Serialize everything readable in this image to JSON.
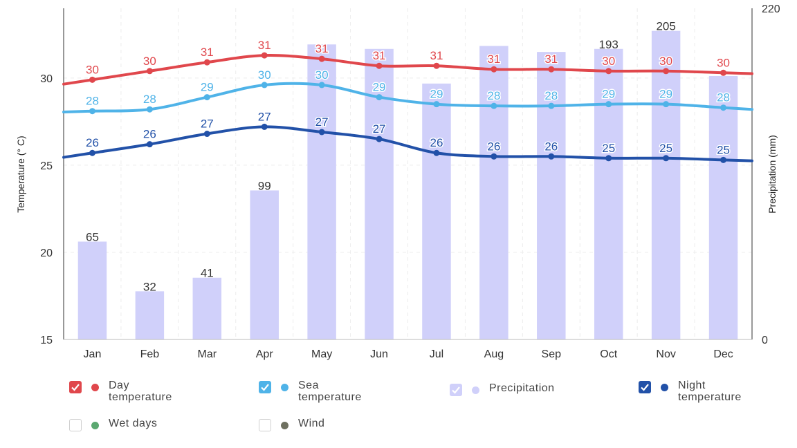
{
  "chart_data": {
    "type": "line",
    "categories": [
      "Jan",
      "Feb",
      "Mar",
      "Apr",
      "May",
      "Jun",
      "Jul",
      "Aug",
      "Sep",
      "Oct",
      "Nov",
      "Dec"
    ],
    "ylabel": "Temperature (° C)",
    "y2label": "Precipitation (mm)",
    "ylim": [
      15,
      34
    ],
    "y_ticks": [
      "15",
      "20",
      "25",
      "30"
    ],
    "y2lim": [
      0,
      220
    ],
    "y2_ticks": [
      "0",
      "220"
    ],
    "series": [
      {
        "name": "Day temperature",
        "type": "line",
        "color": "#e0474c",
        "values": [
          29.9,
          30.4,
          30.9,
          31.3,
          31.1,
          30.7,
          30.7,
          30.5,
          30.5,
          30.4,
          30.4,
          30.3
        ],
        "labels": [
          "30",
          "30",
          "31",
          "31",
          "31",
          "31",
          "31",
          "31",
          "31",
          "30",
          "30",
          "30"
        ]
      },
      {
        "name": "Sea temperature",
        "type": "line",
        "color": "#4fb3e8",
        "values": [
          28.1,
          28.2,
          28.9,
          29.6,
          29.6,
          28.9,
          28.5,
          28.4,
          28.4,
          28.5,
          28.5,
          28.3
        ],
        "labels": [
          "28",
          "28",
          "29",
          "30",
          "30",
          "29",
          "29",
          "28",
          "28",
          "29",
          "29",
          "28"
        ]
      },
      {
        "name": "Precipitation",
        "type": "bar",
        "axis": "y2",
        "color": "#d0d0fa",
        "values": [
          65,
          32,
          41,
          99,
          196,
          193,
          170,
          195,
          191,
          193,
          205,
          175
        ],
        "labels": [
          "65",
          "32",
          "41",
          "99",
          "",
          "",
          "",
          "",
          "",
          "193",
          "205",
          ""
        ]
      },
      {
        "name": "Night temperature",
        "type": "line",
        "color": "#2251a8",
        "values": [
          25.7,
          26.2,
          26.8,
          27.2,
          26.9,
          26.5,
          25.7,
          25.5,
          25.5,
          25.4,
          25.4,
          25.3
        ],
        "labels": [
          "26",
          "26",
          "27",
          "27",
          "27",
          "27",
          "26",
          "26",
          "26",
          "25",
          "25",
          "25"
        ]
      }
    ],
    "grid": true
  },
  "legend": {
    "items": [
      {
        "label": "Day\ntemperature",
        "color": "#e0474c",
        "checked": true
      },
      {
        "label": "Sea\ntemperature",
        "color": "#4fb3e8",
        "checked": true
      },
      {
        "label": "Precipitation",
        "color": "#d0d0fa",
        "checked": true
      },
      {
        "label": "Night\ntemperature",
        "color": "#2251a8",
        "checked": true
      },
      {
        "label": "Wet days",
        "color": "#5ba870",
        "checked": false
      },
      {
        "label": "Wind",
        "color": "#6e7060",
        "checked": false
      }
    ]
  }
}
